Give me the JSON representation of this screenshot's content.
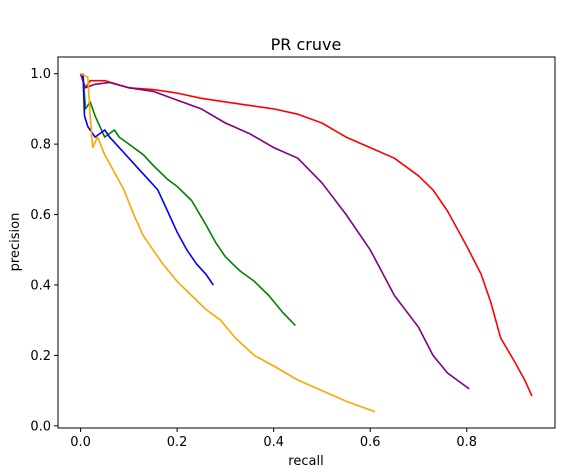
{
  "chart_data": {
    "type": "line",
    "title": "PR cruve",
    "xlabel": "recall",
    "ylabel": "precision",
    "xlim": [
      -0.0468,
      0.9828
    ],
    "ylim": [
      -0.0062,
      1.0474
    ],
    "grid": false,
    "x_ticks": [
      0.0,
      0.2,
      0.4,
      0.6,
      0.8
    ],
    "x_tick_labels": [
      "0.0",
      "0.2",
      "0.4",
      "0.6",
      "0.8"
    ],
    "y_ticks": [
      0.0,
      0.2,
      0.4,
      0.6,
      0.8,
      1.0
    ],
    "y_tick_labels": [
      "0.0",
      "0.2",
      "0.4",
      "0.6",
      "0.8",
      "1.0"
    ],
    "series": [
      {
        "color": "#ff0000",
        "points": [
          [
            0.0,
            1.0
          ],
          [
            0.01,
            0.96
          ],
          [
            0.02,
            0.98
          ],
          [
            0.05,
            0.98
          ],
          [
            0.1,
            0.96
          ],
          [
            0.15,
            0.955
          ],
          [
            0.2,
            0.945
          ],
          [
            0.25,
            0.93
          ],
          [
            0.3,
            0.92
          ],
          [
            0.35,
            0.91
          ],
          [
            0.4,
            0.9
          ],
          [
            0.45,
            0.885
          ],
          [
            0.5,
            0.86
          ],
          [
            0.55,
            0.82
          ],
          [
            0.6,
            0.79
          ],
          [
            0.65,
            0.76
          ],
          [
            0.7,
            0.71
          ],
          [
            0.73,
            0.67
          ],
          [
            0.76,
            0.61
          ],
          [
            0.8,
            0.51
          ],
          [
            0.83,
            0.43
          ],
          [
            0.85,
            0.35
          ],
          [
            0.87,
            0.25
          ],
          [
            0.9,
            0.18
          ],
          [
            0.92,
            0.13
          ],
          [
            0.935,
            0.085
          ]
        ]
      },
      {
        "color": "#800080",
        "points": [
          [
            0.0,
            1.0
          ],
          [
            0.01,
            0.96
          ],
          [
            0.03,
            0.97
          ],
          [
            0.06,
            0.975
          ],
          [
            0.1,
            0.96
          ],
          [
            0.15,
            0.95
          ],
          [
            0.2,
            0.925
          ],
          [
            0.25,
            0.9
          ],
          [
            0.3,
            0.86
          ],
          [
            0.35,
            0.83
          ],
          [
            0.4,
            0.79
          ],
          [
            0.45,
            0.76
          ],
          [
            0.5,
            0.69
          ],
          [
            0.55,
            0.6
          ],
          [
            0.6,
            0.5
          ],
          [
            0.65,
            0.37
          ],
          [
            0.7,
            0.28
          ],
          [
            0.73,
            0.2
          ],
          [
            0.76,
            0.15
          ],
          [
            0.8,
            0.11
          ],
          [
            0.805,
            0.105
          ]
        ]
      },
      {
        "color": "#008000",
        "points": [
          [
            0.005,
            1.0
          ],
          [
            0.01,
            0.9
          ],
          [
            0.02,
            0.92
          ],
          [
            0.03,
            0.88
          ],
          [
            0.04,
            0.85
          ],
          [
            0.05,
            0.82
          ],
          [
            0.07,
            0.84
          ],
          [
            0.08,
            0.82
          ],
          [
            0.1,
            0.8
          ],
          [
            0.13,
            0.77
          ],
          [
            0.15,
            0.74
          ],
          [
            0.18,
            0.7
          ],
          [
            0.2,
            0.68
          ],
          [
            0.23,
            0.64
          ],
          [
            0.26,
            0.57
          ],
          [
            0.28,
            0.52
          ],
          [
            0.3,
            0.48
          ],
          [
            0.33,
            0.44
          ],
          [
            0.36,
            0.41
          ],
          [
            0.39,
            0.37
          ],
          [
            0.42,
            0.32
          ],
          [
            0.445,
            0.285
          ]
        ]
      },
      {
        "color": "#0000ff",
        "points": [
          [
            0.005,
            1.0
          ],
          [
            0.008,
            0.88
          ],
          [
            0.015,
            0.85
          ],
          [
            0.02,
            0.84
          ],
          [
            0.03,
            0.82
          ],
          [
            0.05,
            0.84
          ],
          [
            0.06,
            0.82
          ],
          [
            0.08,
            0.79
          ],
          [
            0.1,
            0.76
          ],
          [
            0.12,
            0.73
          ],
          [
            0.14,
            0.7
          ],
          [
            0.16,
            0.67
          ],
          [
            0.18,
            0.61
          ],
          [
            0.2,
            0.55
          ],
          [
            0.22,
            0.5
          ],
          [
            0.24,
            0.46
          ],
          [
            0.26,
            0.43
          ],
          [
            0.275,
            0.4
          ]
        ]
      },
      {
        "color": "#ffa500",
        "points": [
          [
            0.0,
            1.0
          ],
          [
            0.015,
            0.99
          ],
          [
            0.02,
            0.88
          ],
          [
            0.025,
            0.79
          ],
          [
            0.035,
            0.82
          ],
          [
            0.05,
            0.77
          ],
          [
            0.07,
            0.72
          ],
          [
            0.09,
            0.67
          ],
          [
            0.11,
            0.6
          ],
          [
            0.13,
            0.54
          ],
          [
            0.15,
            0.5
          ],
          [
            0.17,
            0.46
          ],
          [
            0.2,
            0.41
          ],
          [
            0.23,
            0.37
          ],
          [
            0.26,
            0.33
          ],
          [
            0.29,
            0.3
          ],
          [
            0.32,
            0.25
          ],
          [
            0.36,
            0.2
          ],
          [
            0.4,
            0.17
          ],
          [
            0.45,
            0.13
          ],
          [
            0.5,
            0.1
          ],
          [
            0.55,
            0.07
          ],
          [
            0.6,
            0.045
          ],
          [
            0.61,
            0.04
          ]
        ]
      }
    ]
  }
}
